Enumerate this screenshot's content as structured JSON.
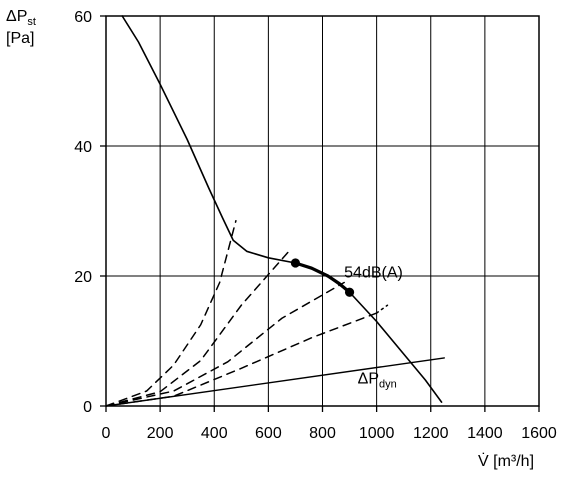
{
  "chart_data": {
    "type": "line",
    "title": "",
    "xlabel": {
      "base": "V̇ [m³/h]"
    },
    "ylabel": {
      "line1_main": "ΔP",
      "line1_sub": "st",
      "line2": "[Pa]"
    },
    "xlim": [
      0,
      1400
    ],
    "ylim": [
      0,
      60
    ],
    "x_ticks": [
      0,
      200,
      400,
      600,
      800,
      1000,
      1200,
      1400,
      1600
    ],
    "y_ticks": [
      0,
      20,
      40,
      60
    ],
    "grid": true,
    "series": [
      {
        "style": "solid",
        "points": [
          [
            60,
            60
          ],
          [
            120,
            56
          ],
          [
            200,
            49.5
          ],
          [
            300,
            41
          ],
          [
            380,
            33.5
          ],
          [
            430,
            29
          ],
          [
            470,
            25.5
          ],
          [
            520,
            23.8
          ],
          [
            600,
            22.8
          ],
          [
            700,
            22
          ],
          [
            800,
            20.5
          ],
          [
            900,
            17.5
          ],
          [
            1000,
            13
          ],
          [
            1100,
            8
          ],
          [
            1180,
            4
          ],
          [
            1240,
            0.6
          ]
        ]
      },
      {
        "style": "bold",
        "points": [
          [
            700,
            22
          ],
          [
            760,
            21.2
          ],
          [
            820,
            20
          ],
          [
            860,
            18.9
          ],
          [
            900,
            17.5
          ]
        ]
      },
      {
        "style": "solid-thin",
        "points": [
          [
            0,
            0
          ],
          [
            1250,
            7.4
          ]
        ]
      },
      {
        "style": "dashed",
        "points": [
          [
            0,
            0
          ],
          [
            150,
            2.3
          ],
          [
            250,
            6.3
          ],
          [
            350,
            12.5
          ],
          [
            420,
            19
          ],
          [
            480,
            28.5
          ]
        ]
      },
      {
        "style": "dashed",
        "points": [
          [
            0,
            0
          ],
          [
            200,
            2.2
          ],
          [
            350,
            7
          ],
          [
            500,
            15.5
          ],
          [
            680,
            24
          ]
        ]
      },
      {
        "style": "dashed",
        "points": [
          [
            0,
            0
          ],
          [
            250,
            2.3
          ],
          [
            450,
            6.8
          ],
          [
            650,
            13.5
          ],
          [
            880,
            19
          ]
        ]
      },
      {
        "style": "dashed",
        "points": [
          [
            0,
            0
          ],
          [
            250,
            1.5
          ],
          [
            500,
            5.8
          ],
          [
            760,
            10.5
          ],
          [
            1000,
            14.3
          ]
        ]
      },
      {
        "style": "dotted",
        "points": [
          [
            1000,
            14.3
          ],
          [
            1040,
            15.5
          ]
        ]
      }
    ],
    "markers": [
      [
        700,
        22
      ],
      [
        900,
        17.5
      ]
    ],
    "annotations": [
      {
        "text": "54dB(A)",
        "x": 880,
        "y": 19.8
      },
      {
        "text_main": "ΔP",
        "text_sub": "dyn",
        "x": 930,
        "y": 3.5
      }
    ]
  }
}
